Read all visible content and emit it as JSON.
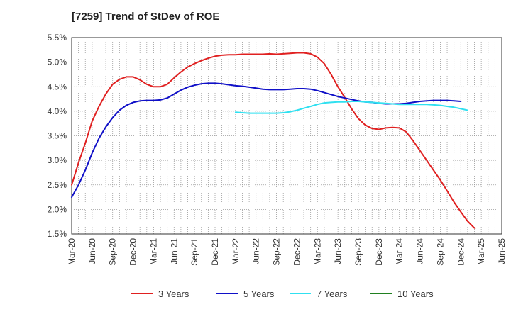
{
  "chart_data": {
    "type": "line",
    "title": "[7259]  Trend of StDev of ROE",
    "xlabel": "",
    "ylabel": "",
    "x_ticks": [
      "Mar-20",
      "Jun-20",
      "Sep-20",
      "Dec-20",
      "Mar-21",
      "Jun-21",
      "Sep-21",
      "Dec-21",
      "Mar-22",
      "Jun-22",
      "Sep-22",
      "Dec-22",
      "Mar-23",
      "Jun-23",
      "Sep-23",
      "Dec-23",
      "Mar-24",
      "Jun-24",
      "Sep-24",
      "Dec-24",
      "Mar-25",
      "Jun-25"
    ],
    "y_ticks": [
      "1.5%",
      "2.0%",
      "2.5%",
      "3.0%",
      "3.5%",
      "4.0%",
      "4.5%",
      "5.0%",
      "5.5%"
    ],
    "ylim": [
      1.5,
      5.5
    ],
    "grid": true,
    "legend_position": "bottom",
    "series": [
      {
        "name": "3 Years",
        "color": "#e02020",
        "values": [
          [
            0,
            2.5
          ],
          [
            1,
            2.95
          ],
          [
            2,
            3.35
          ],
          [
            3,
            3.8
          ],
          [
            4,
            4.1
          ],
          [
            5,
            4.35
          ],
          [
            6,
            4.55
          ],
          [
            7,
            4.65
          ],
          [
            8,
            4.7
          ],
          [
            9,
            4.7
          ],
          [
            10,
            4.64
          ],
          [
            11,
            4.55
          ],
          [
            12,
            4.5
          ],
          [
            13,
            4.5
          ],
          [
            14,
            4.55
          ],
          [
            15,
            4.68
          ],
          [
            16,
            4.8
          ],
          [
            17,
            4.9
          ],
          [
            18,
            4.97
          ],
          [
            19,
            5.03
          ],
          [
            20,
            5.08
          ],
          [
            21,
            5.12
          ],
          [
            22,
            5.14
          ],
          [
            23,
            5.15
          ],
          [
            24,
            5.15
          ],
          [
            25,
            5.16
          ],
          [
            26,
            5.16
          ],
          [
            27,
            5.16
          ],
          [
            28,
            5.16
          ],
          [
            29,
            5.17
          ],
          [
            30,
            5.16
          ],
          [
            31,
            5.17
          ],
          [
            32,
            5.18
          ],
          [
            33,
            5.19
          ],
          [
            34,
            5.19
          ],
          [
            35,
            5.17
          ],
          [
            36,
            5.1
          ],
          [
            37,
            4.97
          ],
          [
            38,
            4.75
          ],
          [
            39,
            4.5
          ],
          [
            40,
            4.28
          ],
          [
            41,
            4.05
          ],
          [
            42,
            3.85
          ],
          [
            43,
            3.72
          ],
          [
            44,
            3.65
          ],
          [
            45,
            3.63
          ],
          [
            46,
            3.66
          ],
          [
            47,
            3.67
          ],
          [
            48,
            3.66
          ],
          [
            49,
            3.58
          ],
          [
            50,
            3.4
          ],
          [
            51,
            3.2
          ],
          [
            52,
            3.0
          ],
          [
            53,
            2.8
          ],
          [
            54,
            2.6
          ],
          [
            55,
            2.38
          ],
          [
            56,
            2.15
          ],
          [
            57,
            1.95
          ],
          [
            58,
            1.76
          ],
          [
            59,
            1.62
          ]
        ]
      },
      {
        "name": "5 Years",
        "color": "#1010c8",
        "values": [
          [
            0,
            2.25
          ],
          [
            1,
            2.5
          ],
          [
            2,
            2.8
          ],
          [
            3,
            3.15
          ],
          [
            4,
            3.45
          ],
          [
            5,
            3.68
          ],
          [
            6,
            3.87
          ],
          [
            7,
            4.02
          ],
          [
            8,
            4.12
          ],
          [
            9,
            4.18
          ],
          [
            10,
            4.21
          ],
          [
            11,
            4.22
          ],
          [
            12,
            4.22
          ],
          [
            13,
            4.23
          ],
          [
            14,
            4.27
          ],
          [
            15,
            4.35
          ],
          [
            16,
            4.43
          ],
          [
            17,
            4.49
          ],
          [
            18,
            4.53
          ],
          [
            19,
            4.56
          ],
          [
            20,
            4.57
          ],
          [
            21,
            4.57
          ],
          [
            22,
            4.56
          ],
          [
            23,
            4.54
          ],
          [
            24,
            4.52
          ],
          [
            25,
            4.51
          ],
          [
            26,
            4.49
          ],
          [
            27,
            4.47
          ],
          [
            28,
            4.45
          ],
          [
            29,
            4.44
          ],
          [
            30,
            4.44
          ],
          [
            31,
            4.44
          ],
          [
            32,
            4.45
          ],
          [
            33,
            4.46
          ],
          [
            34,
            4.46
          ],
          [
            35,
            4.45
          ],
          [
            36,
            4.42
          ],
          [
            37,
            4.38
          ],
          [
            38,
            4.34
          ],
          [
            39,
            4.3
          ],
          [
            40,
            4.27
          ],
          [
            41,
            4.24
          ],
          [
            42,
            4.21
          ],
          [
            43,
            4.19
          ],
          [
            44,
            4.18
          ],
          [
            45,
            4.16
          ],
          [
            46,
            4.15
          ],
          [
            47,
            4.15
          ],
          [
            48,
            4.15
          ],
          [
            49,
            4.16
          ],
          [
            50,
            4.18
          ],
          [
            51,
            4.2
          ],
          [
            52,
            4.21
          ],
          [
            53,
            4.22
          ],
          [
            54,
            4.22
          ],
          [
            55,
            4.22
          ],
          [
            56,
            4.21
          ],
          [
            57,
            4.2
          ]
        ]
      },
      {
        "name": "7 Years",
        "color": "#30e0f0",
        "values": [
          [
            24,
            3.98
          ],
          [
            25,
            3.97
          ],
          [
            26,
            3.96
          ],
          [
            27,
            3.96
          ],
          [
            28,
            3.96
          ],
          [
            29,
            3.96
          ],
          [
            30,
            3.96
          ],
          [
            31,
            3.97
          ],
          [
            32,
            3.99
          ],
          [
            33,
            4.02
          ],
          [
            34,
            4.06
          ],
          [
            35,
            4.1
          ],
          [
            36,
            4.14
          ],
          [
            37,
            4.17
          ],
          [
            38,
            4.18
          ],
          [
            39,
            4.19
          ],
          [
            40,
            4.19
          ],
          [
            41,
            4.2
          ],
          [
            42,
            4.2
          ],
          [
            43,
            4.19
          ],
          [
            44,
            4.18
          ],
          [
            45,
            4.17
          ],
          [
            46,
            4.16
          ],
          [
            47,
            4.15
          ],
          [
            48,
            4.14
          ],
          [
            49,
            4.14
          ],
          [
            50,
            4.14
          ],
          [
            51,
            4.14
          ],
          [
            52,
            4.14
          ],
          [
            53,
            4.13
          ],
          [
            54,
            4.12
          ],
          [
            55,
            4.1
          ],
          [
            56,
            4.08
          ],
          [
            57,
            4.05
          ],
          [
            58,
            4.02
          ]
        ]
      },
      {
        "name": "10 Years",
        "color": "#208020",
        "values": []
      }
    ]
  }
}
